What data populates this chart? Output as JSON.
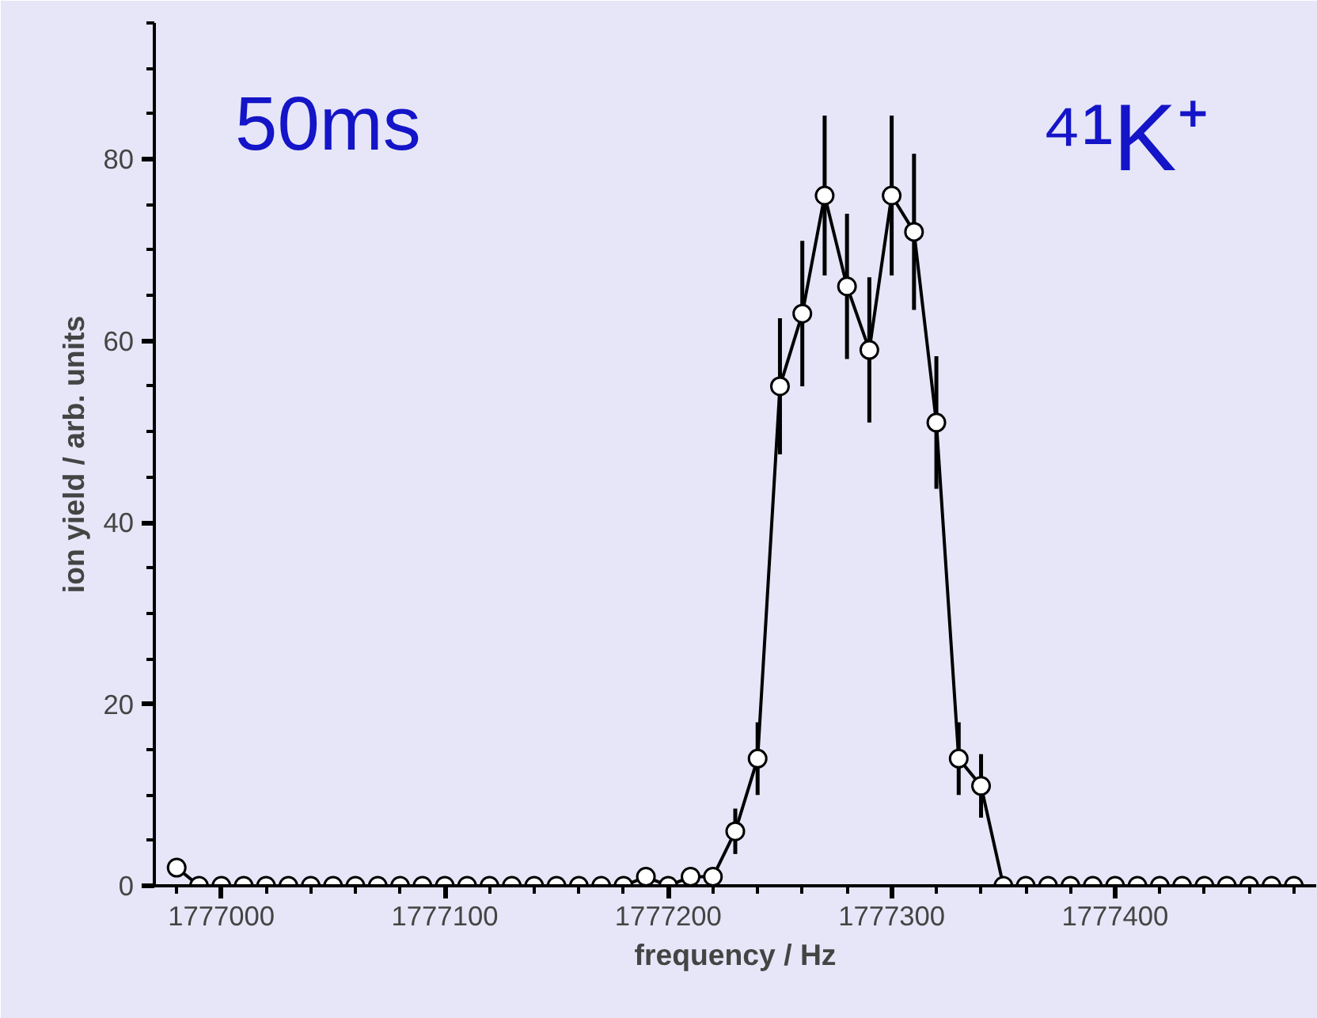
{
  "chart_data": {
    "type": "line",
    "xlabel": "frequency / Hz",
    "ylabel": "ion yield / arb. units",
    "annotations": [
      "50ms",
      "⁴¹K⁺"
    ],
    "x": [
      1776980,
      1776990,
      1777000,
      1777010,
      1777020,
      1777030,
      1777040,
      1777050,
      1777060,
      1777070,
      1777080,
      1777090,
      1777100,
      1777110,
      1777120,
      1777130,
      1777140,
      1777150,
      1777160,
      1777170,
      1777180,
      1777190,
      1777200,
      1777210,
      1777220,
      1777230,
      1777240,
      1777250,
      1777260,
      1777270,
      1777280,
      1777290,
      1777300,
      1777310,
      1777320,
      1777330,
      1777340,
      1777350,
      1777360,
      1777370,
      1777380,
      1777390,
      1777400,
      1777410,
      1777420,
      1777430,
      1777440,
      1777450,
      1777460,
      1777470,
      1777480
    ],
    "series": [
      {
        "color": "#000000",
        "values": [
          2,
          0,
          0,
          0,
          0,
          0,
          0,
          0,
          0,
          0,
          0,
          0,
          0,
          0,
          0,
          0,
          0,
          0,
          0,
          0,
          0,
          1,
          0,
          1,
          1,
          6,
          14,
          55,
          63,
          76,
          66,
          59,
          76,
          72,
          51,
          14,
          11,
          0,
          0,
          0,
          0,
          0,
          0,
          0,
          0,
          0,
          0,
          0,
          0,
          0,
          0
        ],
        "errors": [
          null,
          null,
          null,
          null,
          null,
          null,
          null,
          null,
          null,
          null,
          null,
          null,
          null,
          null,
          null,
          null,
          null,
          null,
          null,
          null,
          null,
          null,
          null,
          null,
          null,
          2.5,
          4,
          7.5,
          8,
          8.8,
          8,
          8,
          8.8,
          8.6,
          7.3,
          4,
          3.5,
          null,
          null,
          null,
          null,
          null,
          null,
          null,
          null,
          null,
          null,
          null,
          null,
          null,
          null
        ]
      }
    ],
    "xlim": [
      1776970,
      1777490
    ],
    "ylim": [
      0,
      95
    ],
    "xticks": [
      1777000,
      1777100,
      1777200,
      1777300,
      1777400
    ],
    "yticks": [
      0,
      20,
      40,
      60,
      80
    ],
    "marker": "circle",
    "line_style": "solid",
    "grid": false
  }
}
